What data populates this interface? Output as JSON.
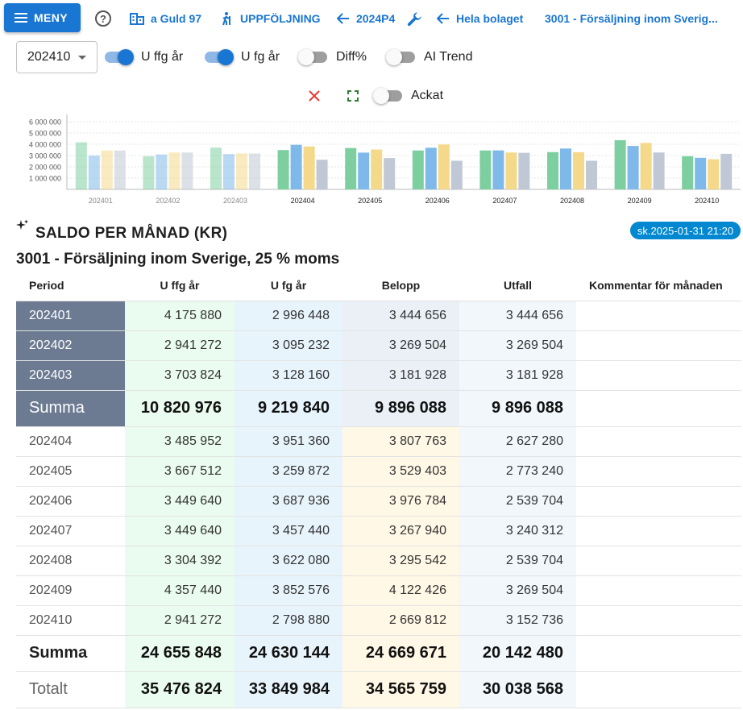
{
  "topbar": {
    "menu_label": "MENY",
    "nav": [
      {
        "label": "a Guld 97",
        "icon": "building-icon"
      },
      {
        "label": "UPPFÖLJNING",
        "icon": "hiking-person-icon"
      },
      {
        "label": "2024P4",
        "icon": "arrow-left-icon"
      },
      {
        "label": "Hela bolaget",
        "icon": "arrow-left-icon"
      },
      {
        "label": "3001 - Försäljning inom Sverig...",
        "icon": ""
      }
    ]
  },
  "controls": {
    "period_value": "202410",
    "toggles": [
      {
        "label": "U ffg år",
        "on": true
      },
      {
        "label": "U fg år",
        "on": true
      },
      {
        "label": "Diff%",
        "on": false
      },
      {
        "label": "AI Trend",
        "on": false
      },
      {
        "label": "Ackat",
        "on": false
      }
    ]
  },
  "chart_data": {
    "type": "bar",
    "categories": [
      "202401",
      "202402",
      "202403",
      "202404",
      "202405",
      "202406",
      "202407",
      "202408",
      "202409",
      "202410"
    ],
    "series": [
      {
        "name": "U ffg år",
        "color": "#7dcfa0",
        "values": [
          4175880,
          2941272,
          3703824,
          3485952,
          3667512,
          3449640,
          3449640,
          3304392,
          4357440,
          2941272
        ]
      },
      {
        "name": "U fg år",
        "color": "#7fb9ea",
        "values": [
          2996448,
          3095232,
          3128160,
          3951360,
          3259872,
          3687936,
          3457440,
          3622080,
          3852576,
          2798880
        ]
      },
      {
        "name": "Belopp",
        "color": "#f4d98a",
        "values": [
          3444656,
          3269504,
          3181928,
          3807763,
          3529403,
          3976784,
          3267940,
          3295542,
          4122426,
          2669812
        ]
      },
      {
        "name": "Utfall",
        "color": "#c0c8d6",
        "values": [
          3444656,
          3269504,
          3181928,
          2627280,
          2773240,
          2539704,
          3240312,
          2539704,
          3269504,
          3152736
        ]
      }
    ],
    "faded_categories": [
      "202401",
      "202402",
      "202403"
    ],
    "ytick_labels": [
      "6 000 000",
      "5 000 000",
      "4 000 000",
      "3 000 000",
      "2 000 000",
      "1 000 000"
    ],
    "yticks": [
      6000000,
      5000000,
      4000000,
      3000000,
      2000000,
      1000000
    ],
    "ylim": [
      0,
      6500000
    ],
    "grid": true,
    "legend": "none"
  },
  "section": {
    "title": "SALDO PER MÅNAD (KR)",
    "timestamp": "sk.2025-01-31 21:20",
    "account_title": "3001 - Försäljning inom Sverige, 25 % moms"
  },
  "table": {
    "headers": [
      "Period",
      "U ffg år",
      "U fg år",
      "Belopp",
      "Utfall",
      "Kommentar för månaden"
    ],
    "quarter_rows": [
      {
        "period": "202401",
        "c1": "4 175 880",
        "c2": "2 996 448",
        "c3": "3 444 656",
        "c4": "3 444 656"
      },
      {
        "period": "202402",
        "c1": "2 941 272",
        "c2": "3 095 232",
        "c3": "3 269 504",
        "c4": "3 269 504"
      },
      {
        "period": "202403",
        "c1": "3 703 824",
        "c2": "3 128 160",
        "c3": "3 181 928",
        "c4": "3 181 928"
      }
    ],
    "quarter_sum": {
      "period": "Summa",
      "c1": "10 820 976",
      "c2": "9 219 840",
      "c3": "9 896 088",
      "c4": "9 896 088"
    },
    "month_rows": [
      {
        "period": "202404",
        "c1": "3 485 952",
        "c2": "3 951 360",
        "c3": "3 807 763",
        "c4": "2 627 280"
      },
      {
        "period": "202405",
        "c1": "3 667 512",
        "c2": "3 259 872",
        "c3": "3 529 403",
        "c4": "2 773 240"
      },
      {
        "period": "202406",
        "c1": "3 449 640",
        "c2": "3 687 936",
        "c3": "3 976 784",
        "c4": "2 539 704"
      },
      {
        "period": "202407",
        "c1": "3 449 640",
        "c2": "3 457 440",
        "c3": "3 267 940",
        "c4": "3 240 312"
      },
      {
        "period": "202408",
        "c1": "3 304 392",
        "c2": "3 622 080",
        "c3": "3 295 542",
        "c4": "2 539 704"
      },
      {
        "period": "202409",
        "c1": "4 357 440",
        "c2": "3 852 576",
        "c3": "4 122 426",
        "c4": "3 269 504"
      },
      {
        "period": "202410",
        "c1": "2 941 272",
        "c2": "2 798 880",
        "c3": "2 669 812",
        "c4": "3 152 736"
      }
    ],
    "month_sum": {
      "period": "Summa",
      "c1": "24 655 848",
      "c2": "24 630 144",
      "c3": "24 669 671",
      "c4": "20 142 480"
    },
    "total": {
      "period": "Totalt",
      "c1": "35 476 824",
      "c2": "33 849 984",
      "c3": "34 565 759",
      "c4": "30 038 568"
    }
  }
}
